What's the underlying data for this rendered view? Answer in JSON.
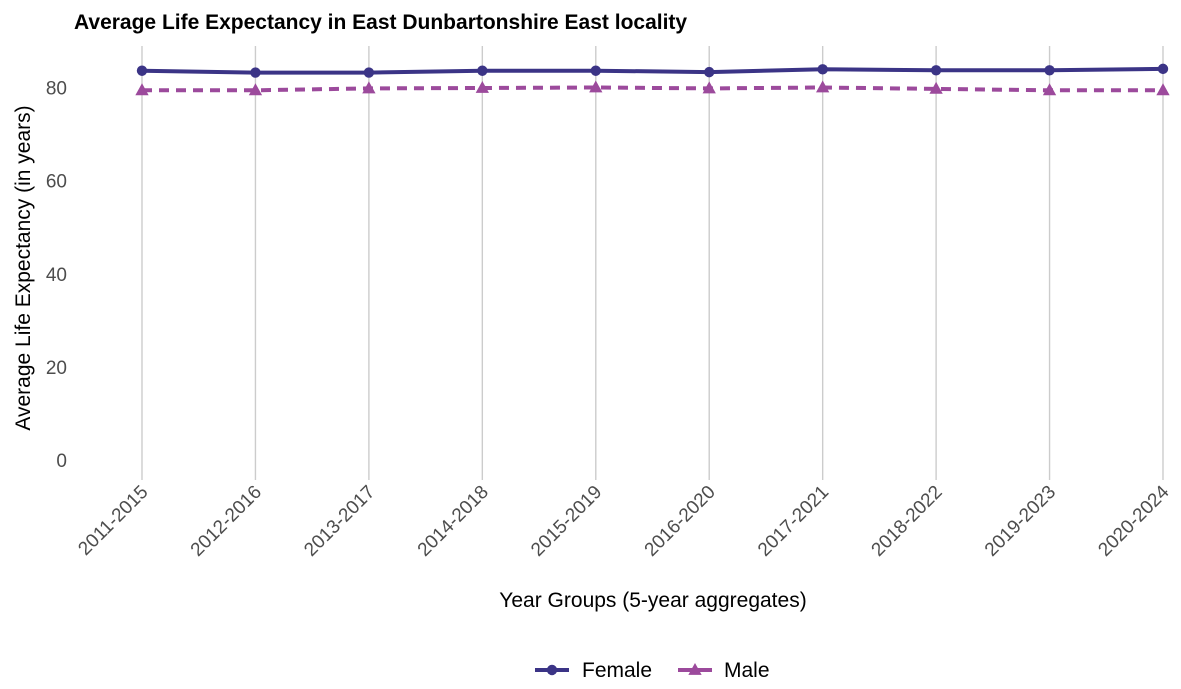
{
  "chart_data": {
    "type": "line",
    "title": "Average Life Expectancy in East Dunbartonshire East locality",
    "xlabel": "Year Groups (5-year aggregates)",
    "ylabel": "Average Life Expectancy (in years)",
    "categories": [
      "2011-2015",
      "2012-2016",
      "2013-2017",
      "2014-2018",
      "2015-2019",
      "2016-2020",
      "2017-2021",
      "2018-2022",
      "2019-2023",
      "2020-2024"
    ],
    "ylim": [
      0,
      88
    ],
    "yticks": [
      0,
      20,
      40,
      60,
      80
    ],
    "grid": "vertical major gridlines only",
    "legend_position": "bottom",
    "series": [
      {
        "name": "Female",
        "values": [
          83.6,
          83.2,
          83.2,
          83.6,
          83.6,
          83.3,
          83.9,
          83.7,
          83.7,
          84.0
        ],
        "color": "#3b3486",
        "line_style": "solid",
        "marker": "circle"
      },
      {
        "name": "Male",
        "values": [
          79.4,
          79.4,
          79.8,
          79.9,
          80.0,
          79.8,
          80.0,
          79.7,
          79.4,
          79.4
        ],
        "color": "#9c4a9c",
        "line_style": "dashed",
        "marker": "triangle"
      }
    ]
  }
}
